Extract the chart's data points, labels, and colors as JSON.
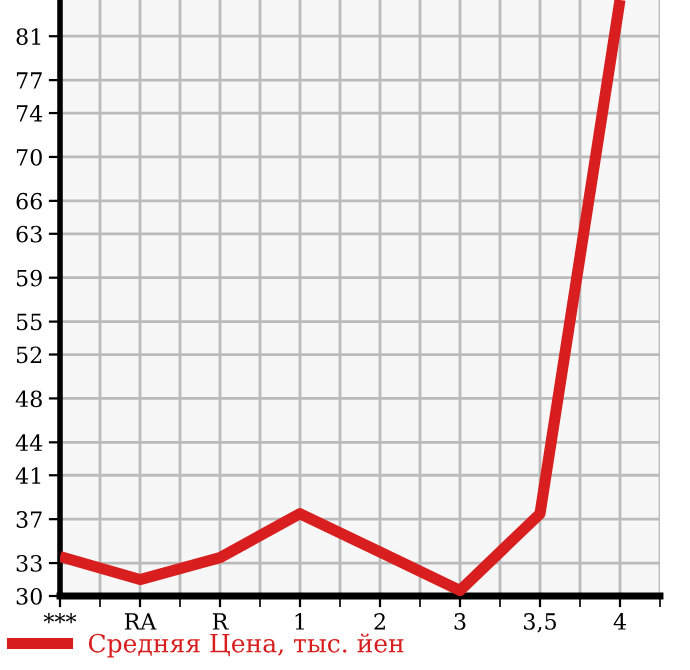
{
  "chart_data": {
    "type": "line",
    "categories": [
      "***",
      "RA",
      "R",
      "1",
      "2",
      "3",
      "3,5",
      "4"
    ],
    "series": [
      {
        "name": "Средняя Цена, тыс. йен",
        "color": "#d81e1e",
        "values": [
          33.6,
          31.5,
          33.5,
          37.5,
          34.0,
          30.5,
          37.5,
          84.3
        ]
      }
    ],
    "ylim": [
      30,
      84.3
    ],
    "yticks": [
      30,
      33,
      37,
      41,
      44,
      48,
      52,
      55,
      59,
      63,
      66,
      70,
      74,
      77,
      81
    ],
    "grid": true,
    "legend": "bottom",
    "marker": "none",
    "line_style": "solid"
  }
}
